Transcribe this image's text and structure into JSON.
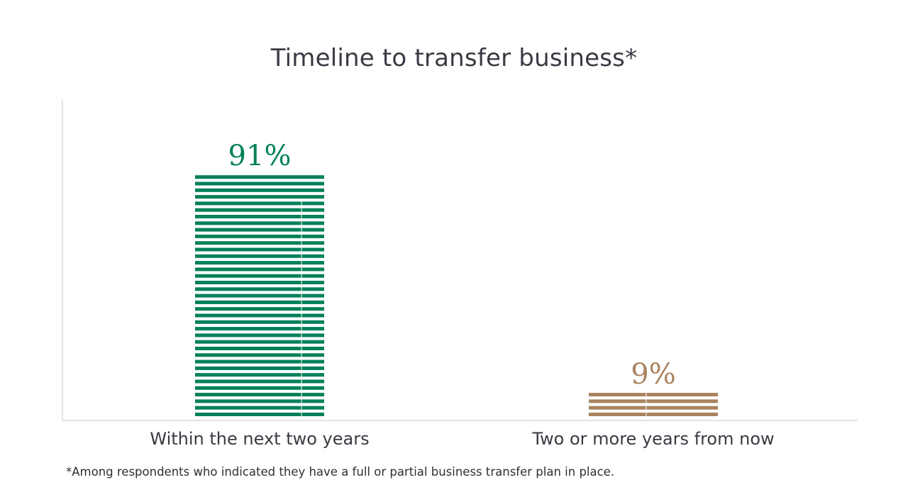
{
  "chart_data": {
    "type": "bar",
    "title": "Timeline to transfer business*",
    "categories": [
      "Within the next two years",
      "Two or more years from now"
    ],
    "values": [
      91,
      9
    ],
    "value_labels": [
      "91%",
      "9%"
    ],
    "ylim": [
      0,
      100
    ],
    "grid": false,
    "colors": [
      "#00805a",
      "#a8835e"
    ]
  },
  "footnote": "*Among respondents who indicated they have a full or partial business transfer plan in place."
}
